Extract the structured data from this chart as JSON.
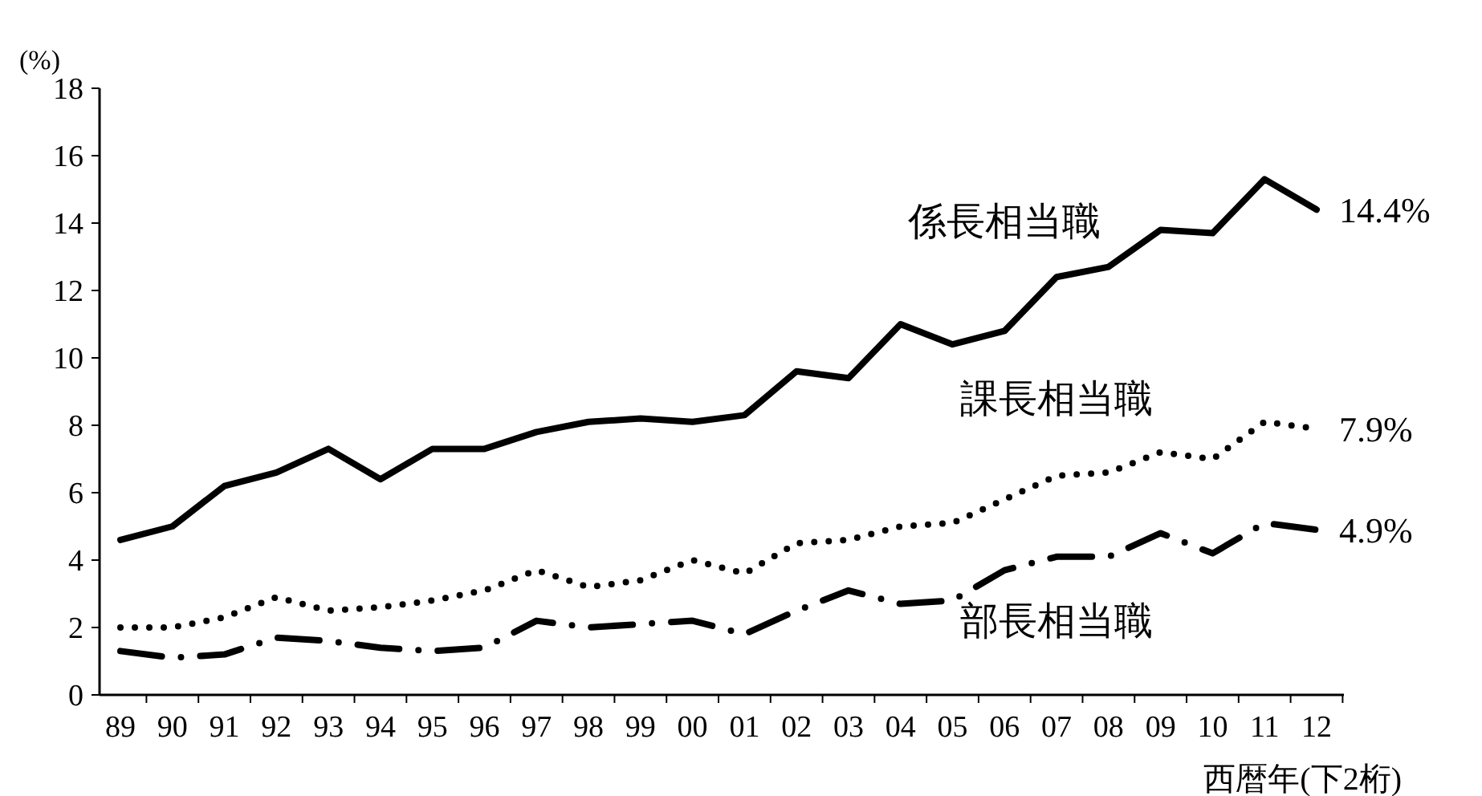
{
  "chart_data": {
    "type": "line",
    "ylabel": "(%)",
    "xlabel": "西暦年(下2桁)",
    "categories": [
      "89",
      "90",
      "91",
      "92",
      "93",
      "94",
      "95",
      "96",
      "97",
      "98",
      "99",
      "00",
      "01",
      "02",
      "03",
      "04",
      "05",
      "06",
      "07",
      "08",
      "09",
      "10",
      "11",
      "12"
    ],
    "series": [
      {
        "name": "係長相当職",
        "color": "#000000",
        "line_style": "solid",
        "values": [
          4.6,
          5.0,
          6.2,
          6.6,
          7.3,
          6.4,
          7.3,
          7.3,
          7.8,
          8.1,
          8.2,
          8.1,
          8.3,
          9.6,
          9.4,
          11.0,
          10.4,
          10.8,
          12.4,
          12.7,
          13.8,
          13.7,
          15.3,
          14.4
        ]
      },
      {
        "name": "課長相当職",
        "color": "#000000",
        "line_style": "dotted",
        "values": [
          2.0,
          2.0,
          2.3,
          2.9,
          2.5,
          2.6,
          2.8,
          3.1,
          3.7,
          3.2,
          3.4,
          4.0,
          3.6,
          4.5,
          4.6,
          5.0,
          5.1,
          5.8,
          6.5,
          6.6,
          7.2,
          7.0,
          8.1,
          7.9
        ]
      },
      {
        "name": "部長相当職",
        "color": "#000000",
        "line_style": "dashdot",
        "values": [
          1.3,
          1.1,
          1.2,
          1.7,
          1.6,
          1.4,
          1.3,
          1.4,
          2.2,
          2.0,
          2.1,
          2.2,
          1.8,
          2.5,
          3.1,
          2.7,
          2.8,
          3.7,
          4.1,
          4.1,
          4.8,
          4.2,
          5.1,
          4.9
        ]
      }
    ],
    "annotations": [
      {
        "text": "14.4%",
        "x": "12",
        "y": 14.4
      },
      {
        "text": "7.9%",
        "x": "12",
        "y": 7.9
      },
      {
        "text": "4.9%",
        "x": "12",
        "y": 4.9
      }
    ],
    "ylim": [
      0,
      18
    ],
    "yticks": [
      0,
      2,
      4,
      6,
      8,
      10,
      12,
      14,
      16,
      18
    ],
    "grid": false,
    "legend": false,
    "marker": "none"
  }
}
